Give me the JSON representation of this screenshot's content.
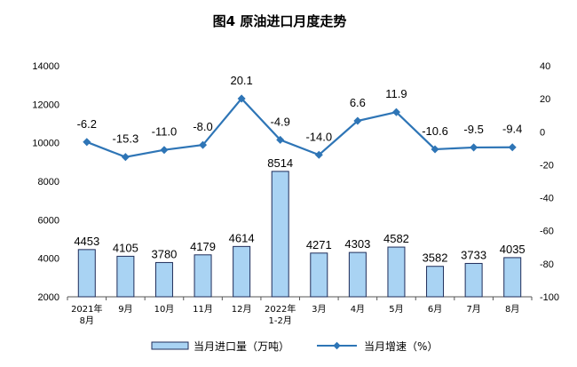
{
  "colors": {
    "bar_fill": "#a9d3f3",
    "bar_stroke": "#1f2d5a",
    "line": "#2e75b6",
    "axis": "#555555"
  },
  "chart_data": {
    "type": "bar+line",
    "title": "图4  原油进口月度走势",
    "categories": [
      [
        "2021年",
        "8月"
      ],
      [
        "9月"
      ],
      [
        "10月"
      ],
      [
        "11月"
      ],
      [
        "12月"
      ],
      [
        "2022年",
        "1-2月"
      ],
      [
        "3月"
      ],
      [
        "4月"
      ],
      [
        "5月"
      ],
      [
        "6月"
      ],
      [
        "7月"
      ],
      [
        "8月"
      ]
    ],
    "y_left": {
      "min": 2000,
      "max": 14000,
      "ticks": [
        2000,
        4000,
        6000,
        8000,
        10000,
        12000,
        14000
      ]
    },
    "y_right": {
      "min": -100,
      "max": 40,
      "ticks": [
        -100,
        -80,
        -60,
        -40,
        -20,
        0,
        20,
        40
      ]
    },
    "series": [
      {
        "name": "当月进口量（万吨）",
        "type": "bar",
        "axis": "left",
        "values": [
          4453,
          4105,
          3780,
          4179,
          4614,
          8514,
          4271,
          4303,
          4582,
          3582,
          3733,
          4035
        ],
        "labels": [
          "4453",
          "4105",
          "3780",
          "4179",
          "4614",
          "8514",
          "4271",
          "4303",
          "4582",
          "3582",
          "3733",
          "4035"
        ]
      },
      {
        "name": "当月增速（%）",
        "type": "line",
        "axis": "right",
        "values": [
          -6.2,
          -15.3,
          -11.0,
          -8.0,
          20.1,
          -4.9,
          -14.0,
          6.6,
          11.9,
          -10.6,
          -9.5,
          -9.4
        ],
        "labels": [
          "-6.2",
          "-15.3",
          "-11.0",
          "-8.0",
          "20.1",
          "-4.9",
          "-14.0",
          "6.6",
          "11.9",
          "-10.6",
          "-9.5",
          "-9.4"
        ]
      }
    ],
    "legend_position": "bottom"
  }
}
